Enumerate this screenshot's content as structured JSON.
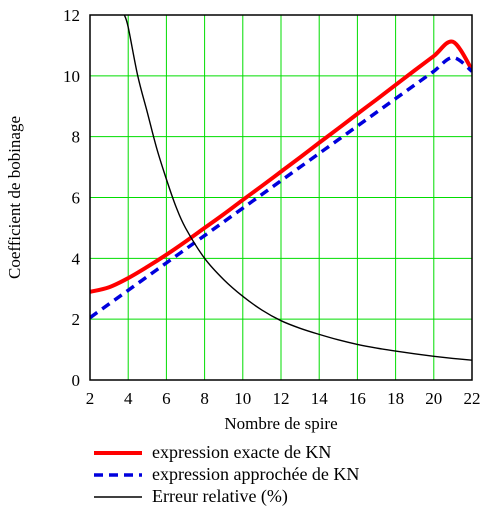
{
  "chart_data": {
    "type": "line",
    "title": "",
    "xlabel": "Nombre de spire",
    "ylabel": "Coefficient de bobinage",
    "xlim": [
      2,
      22
    ],
    "ylim": [
      0,
      12
    ],
    "xticks": [
      2,
      4,
      6,
      8,
      10,
      12,
      14,
      16,
      18,
      20,
      22
    ],
    "yticks": [
      0,
      2,
      4,
      6,
      8,
      10,
      12
    ],
    "xtick_labels": [
      "2",
      "4",
      "6",
      "8",
      "10",
      "12",
      "14",
      "16",
      "18",
      "20",
      "22"
    ],
    "ytick_labels": [
      "0",
      "2",
      "4",
      "6",
      "8",
      "10",
      "12"
    ],
    "grid": true,
    "grid_color": "#00dd00",
    "legend_position": "bottom",
    "series": [
      {
        "name": "expression exacte de KN",
        "color": "#ff0000",
        "style": "solid",
        "x": [
          2,
          3,
          4,
          5,
          6,
          7,
          8,
          9,
          10,
          11,
          12,
          13,
          14,
          15,
          16,
          17,
          18,
          19,
          20,
          21,
          22
        ],
        "y": [
          2.9,
          3.05,
          3.35,
          3.72,
          4.12,
          4.55,
          5.0,
          5.45,
          5.92,
          6.38,
          6.85,
          7.32,
          7.8,
          8.27,
          8.75,
          9.22,
          9.7,
          10.18,
          10.65,
          11.12,
          10.2
        ]
      },
      {
        "name": "expression approchée de KN",
        "color": "#0000dd",
        "style": "dashed",
        "x": [
          2,
          3,
          4,
          5,
          6,
          7,
          8,
          9,
          10,
          11,
          12,
          13,
          14,
          15,
          16,
          17,
          18,
          19,
          20,
          21,
          22
        ],
        "y": [
          2.05,
          2.5,
          2.95,
          3.4,
          3.85,
          4.3,
          4.75,
          5.2,
          5.65,
          6.1,
          6.55,
          7.0,
          7.45,
          7.9,
          8.35,
          8.8,
          9.25,
          9.7,
          10.15,
          10.6,
          10.15
        ]
      },
      {
        "name": "Erreur relative (%)",
        "color": "#000000",
        "style": "solid",
        "x": [
          3.8,
          4,
          4.5,
          5,
          5.5,
          6,
          6.5,
          7,
          8,
          9,
          10,
          11,
          12,
          13,
          14,
          15,
          16,
          17,
          18,
          19,
          20,
          21,
          22
        ],
        "y": [
          12,
          11.6,
          10.0,
          8.8,
          7.6,
          6.6,
          5.7,
          5.0,
          4.0,
          3.3,
          2.75,
          2.3,
          1.95,
          1.7,
          1.5,
          1.32,
          1.17,
          1.05,
          0.95,
          0.86,
          0.78,
          0.71,
          0.65
        ]
      }
    ]
  }
}
